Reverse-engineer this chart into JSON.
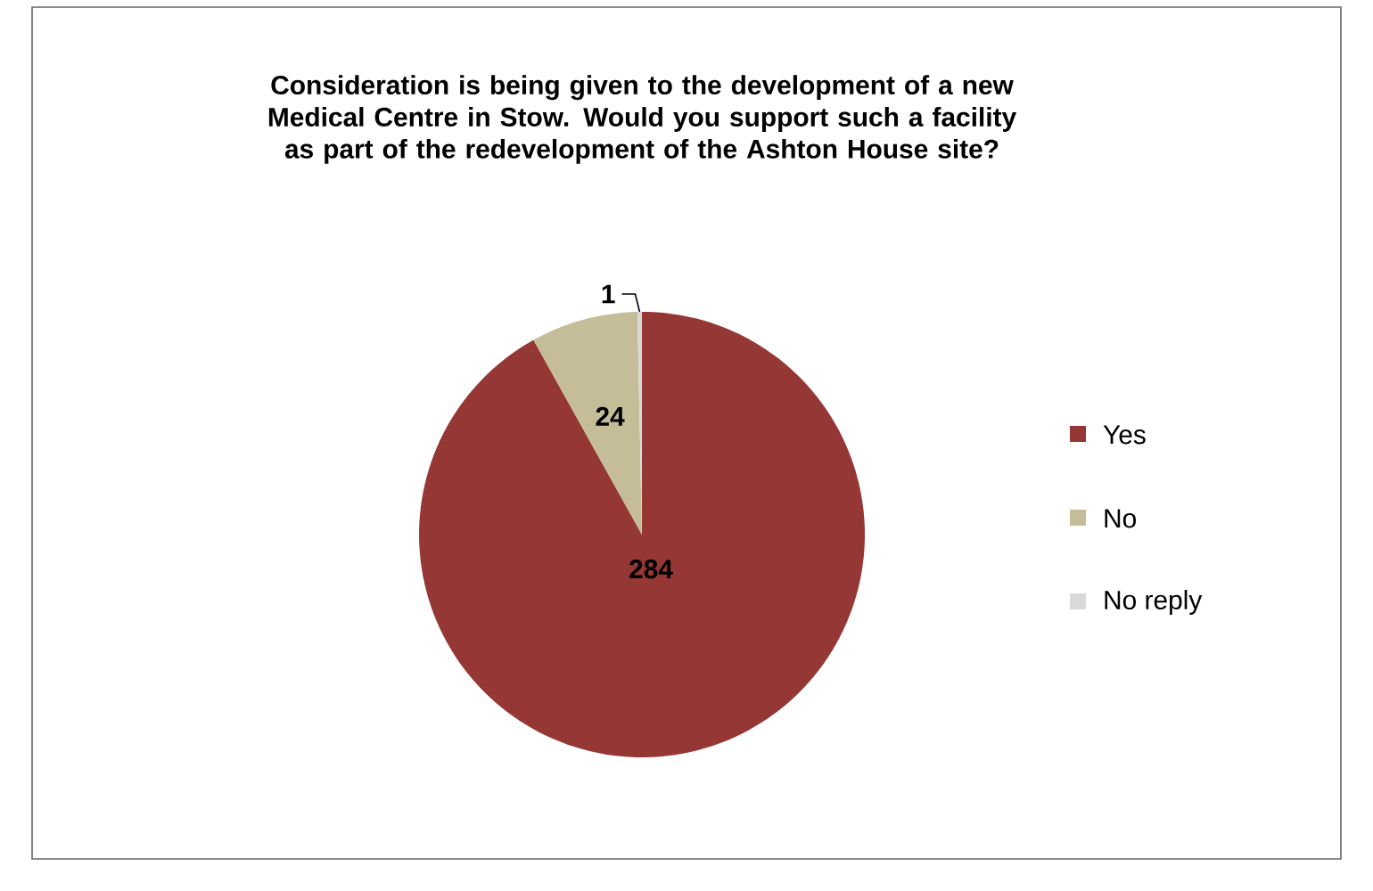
{
  "chart_data": {
    "type": "pie",
    "title": "Consideration is being given to the development of a new Medical Centre in Stow.  Would you support such a facility as part of the redevelopment of the Ashton House site?",
    "categories": [
      "Yes",
      "No",
      "No reply"
    ],
    "values": [
      284,
      24,
      1
    ],
    "colors": [
      "#953735",
      "#c4bd97",
      "#d9d9d9"
    ],
    "data_labels": true,
    "legend": "right"
  }
}
